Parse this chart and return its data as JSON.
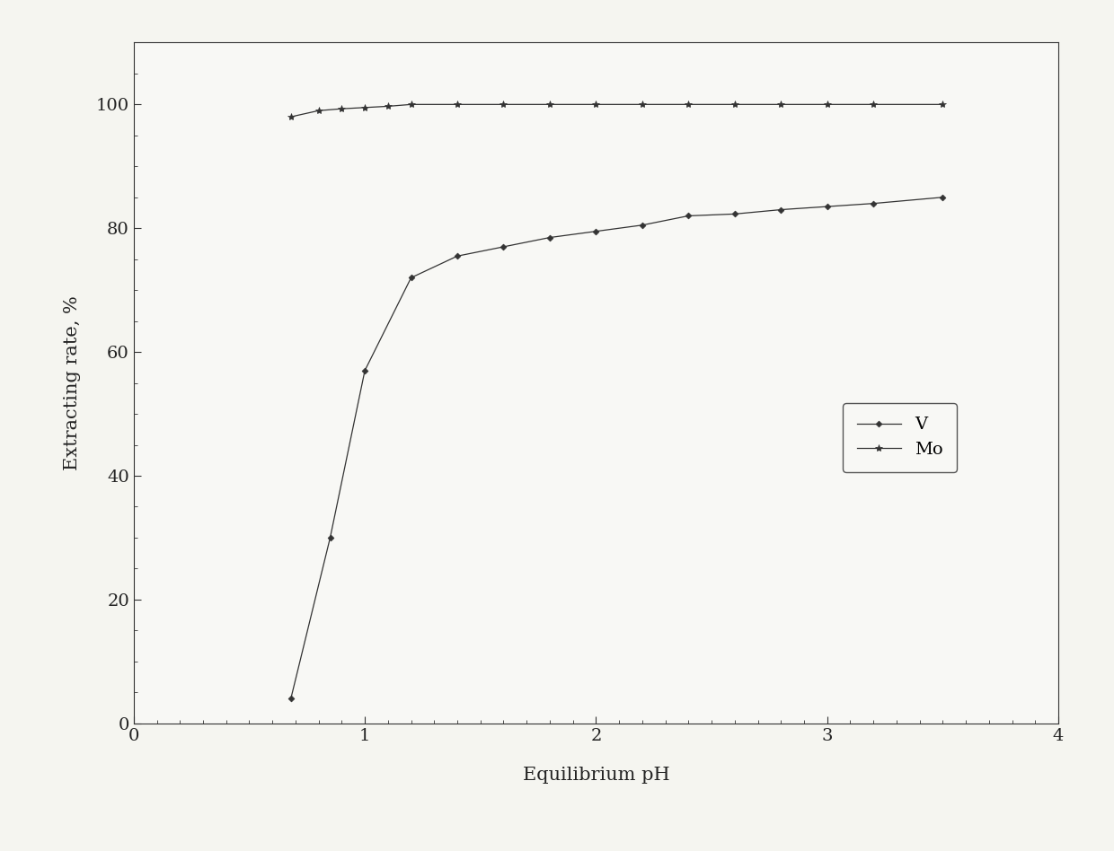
{
  "V_x": [
    0.68,
    0.85,
    1.0,
    1.2,
    1.4,
    1.6,
    1.8,
    2.0,
    2.2,
    2.4,
    2.6,
    2.8,
    3.0,
    3.2,
    3.5
  ],
  "V_y": [
    4.0,
    30.0,
    57.0,
    72.0,
    75.5,
    77.0,
    78.5,
    79.5,
    80.5,
    82.0,
    82.3,
    83.0,
    83.5,
    84.0,
    85.0
  ],
  "Mo_x": [
    0.68,
    0.8,
    0.9,
    1.0,
    1.1,
    1.2,
    1.4,
    1.6,
    1.8,
    2.0,
    2.2,
    2.4,
    2.6,
    2.8,
    3.0,
    3.2,
    3.5
  ],
  "Mo_y": [
    98.0,
    99.0,
    99.3,
    99.5,
    99.7,
    100.0,
    100.0,
    100.0,
    100.0,
    100.0,
    100.0,
    100.0,
    100.0,
    100.0,
    100.0,
    100.0,
    100.0
  ],
  "xlabel": "Equilibrium pH",
  "ylabel": "Extracting rate, %",
  "xlim": [
    0.35,
    4.0
  ],
  "ylim": [
    0,
    110
  ],
  "xticks": [
    0,
    1,
    2,
    3,
    4
  ],
  "yticks": [
    0,
    20,
    40,
    60,
    80,
    100
  ],
  "legend_V": "V",
  "legend_Mo": "Mo",
  "line_color": "#333333",
  "bg_color": "#f5f5f0",
  "plot_bg_color": "#f8f8f5",
  "figsize": [
    12.4,
    9.48
  ],
  "dpi": 100
}
